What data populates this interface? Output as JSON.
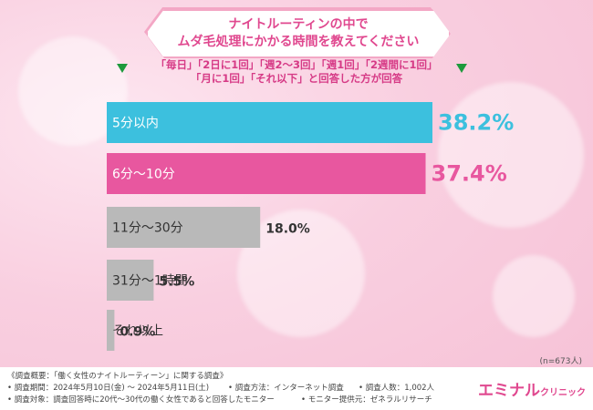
{
  "chart_data": {
    "type": "bar",
    "orientation": "horizontal",
    "title_lines": [
      "ナイトルーティンの中で",
      "ムダ毛処理にかかる時間を教えてください"
    ],
    "subtitle_lines": [
      "「毎日」「2日に1回」「週2〜3回」「週1回」「2週間に1回」",
      "「月に1回」「それ以下」と回答した方が回答"
    ],
    "categories": [
      "5分以内",
      "6分〜10分",
      "11分〜30分",
      "31分〜1時間",
      "それ以上"
    ],
    "values": [
      38.2,
      37.4,
      18.0,
      5.5,
      0.9
    ],
    "value_labels": [
      "38.2%",
      "37.4%",
      "18.0%",
      "5.5%",
      "0.9%"
    ],
    "colors": [
      "#3cc0de",
      "#e8579f",
      "#b9b9b9",
      "#b9b9b9",
      "#b9b9b9"
    ],
    "sample_note": "(n=673人)",
    "xlim": [
      0,
      38.2
    ]
  },
  "footer": {
    "overview": "《調査概要：「働く女性のナイトルーティーン」に関する調査》",
    "period": "• 調査期間：2024年5月10日(金) 〜 2024年5月11日(土)",
    "method": "• 調査方法：インターネット調査",
    "count": "• 調査人数：1,002人",
    "target": "• 調査対象：調査回答時に20代〜30代の働く女性であると回答したモニター",
    "provider": "• モニター提供元：ゼネラルリサーチ",
    "logo_main": "エミナル",
    "logo_sub": "クリニック"
  }
}
